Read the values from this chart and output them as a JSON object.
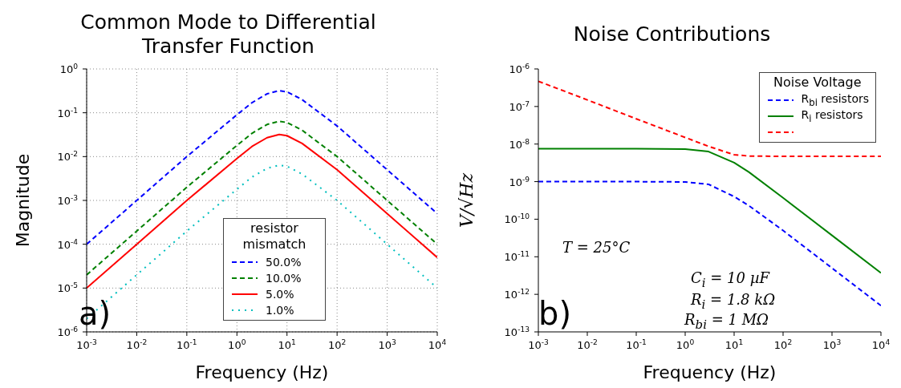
{
  "chart_data": [
    {
      "type": "line",
      "title": "Common Mode to Differential Transfer Function",
      "xlabel": "Frequency (Hz)",
      "ylabel": "Magnitude",
      "log": "xy",
      "grid": true,
      "legend": "bottom",
      "legend_title": "resistor mismatch",
      "x": [
        0.001,
        0.01,
        0.1,
        1,
        2,
        4,
        7,
        10,
        20,
        100,
        1000,
        10000
      ],
      "xlim": [
        0.001,
        10000
      ],
      "xticks": [
        {
          "value": 0.001,
          "label": "10$^{-3}$"
        },
        {
          "value": 0.01,
          "label": "10$^{-2}$"
        },
        {
          "value": 0.1,
          "label": "10$^{-1}$"
        },
        {
          "value": 1,
          "label": "10$^{0}$"
        },
        {
          "value": 10,
          "label": "10$^{1}$"
        },
        {
          "value": 100,
          "label": "10$^{2}$"
        },
        {
          "value": 1000,
          "label": "10$^{3}$"
        },
        {
          "value": 10000,
          "label": "10$^{4}$"
        }
      ],
      "ylim": [
        1e-06,
        1
      ],
      "yticks": [
        {
          "value": 1e-06,
          "label": "10$^{-6}$"
        },
        {
          "value": 1e-05,
          "label": "10$^{-5}$"
        },
        {
          "value": 0.0001,
          "label": "10$^{-4}$"
        },
        {
          "value": 0.001,
          "label": "10$^{-3}$"
        },
        {
          "value": 0.01,
          "label": "10$^{-2}$"
        },
        {
          "value": 0.1,
          "label": "10$^{-1}$"
        },
        {
          "value": 1,
          "label": "10$^{0}$"
        }
      ],
      "series": [
        {
          "name": "50.0%",
          "color": "#0000ff",
          "line_style": "dashed",
          "values": [
            0.0001,
            0.001,
            0.01,
            0.09,
            0.17,
            0.27,
            0.32,
            0.3,
            0.2,
            0.05,
            0.005,
            0.0005
          ]
        },
        {
          "name": "10.0%",
          "color": "#008000",
          "line_style": "dashed",
          "values": [
            2e-05,
            0.0002,
            0.002,
            0.018,
            0.034,
            0.054,
            0.064,
            0.06,
            0.04,
            0.01,
            0.001,
            0.0001
          ]
        },
        {
          "name": "5.0%",
          "color": "#ff0000",
          "line_style": "solid",
          "values": [
            1e-05,
            0.0001,
            0.001,
            0.009,
            0.017,
            0.027,
            0.032,
            0.03,
            0.02,
            0.005,
            0.0005,
            5e-05
          ]
        },
        {
          "name": "1.0%",
          "color": "#00bfbf",
          "line_style": "dotted",
          "values": [
            2e-06,
            2e-05,
            0.0002,
            0.0018,
            0.0034,
            0.0054,
            0.0064,
            0.006,
            0.004,
            0.001,
            0.0001,
            1e-05
          ]
        }
      ],
      "annotations": [
        "a)"
      ]
    },
    {
      "type": "line",
      "title": "Noise Contributions",
      "xlabel": "Frequency (Hz)",
      "ylabel": "V/√Hz",
      "log": "xy",
      "grid": false,
      "legend": "top right",
      "legend_title": "Noise Voltage",
      "x": [
        0.001,
        0.01,
        0.1,
        1,
        3,
        10,
        20,
        100,
        1000,
        10000
      ],
      "xlim": [
        0.001,
        10000
      ],
      "xticks": [
        {
          "value": 0.001,
          "label": "10$^{-3}$"
        },
        {
          "value": 0.01,
          "label": "10$^{-2}$"
        },
        {
          "value": 0.1,
          "label": "10$^{-1}$"
        },
        {
          "value": 1,
          "label": "10$^{0}$"
        },
        {
          "value": 10,
          "label": "10$^{1}$"
        },
        {
          "value": 100,
          "label": "10$^{2}$"
        },
        {
          "value": 1000,
          "label": "10$^{3}$"
        },
        {
          "value": 10000,
          "label": "10$^{4}$"
        }
      ],
      "ylim": [
        1e-13,
        1e-06
      ],
      "yticks": [
        {
          "value": 1e-13,
          "label": "10$^{-13}$"
        },
        {
          "value": 1e-12,
          "label": "10$^{-12}$"
        },
        {
          "value": 1e-11,
          "label": "10$^{-11}$"
        },
        {
          "value": 1e-10,
          "label": "10$^{-10}$"
        },
        {
          "value": 1e-09,
          "label": "10$^{-9}$"
        },
        {
          "value": 1e-08,
          "label": "10$^{-8}$"
        },
        {
          "value": 1e-07,
          "label": "10$^{-7}$"
        },
        {
          "value": 1e-06,
          "label": "10$^{-6}$"
        }
      ],
      "series": [
        {
          "name": "R$_{bi}$ resistors",
          "color": "#0000ff",
          "line_style": "dashed",
          "values": [
            1e-09,
            1e-09,
            1e-09,
            9.8e-10,
            8.5e-10,
            4e-10,
            2.3e-10,
            5e-11,
            5e-12,
            5e-13
          ]
        },
        {
          "name": "R$_{i}$ resistors",
          "color": "#008000",
          "line_style": "solid",
          "values": [
            7.5e-09,
            7.5e-09,
            7.5e-09,
            7.3e-09,
            6.3e-09,
            3.2e-09,
            1.8e-09,
            3.7e-10,
            3.7e-11,
            3.7e-12
          ]
        },
        {
          "color": "#ff0000",
          "line_style": "dashed",
          "values": [
            4.7e-07,
            1.5e-07,
            4.7e-08,
            1.5e-08,
            8.7e-09,
            5.2e-09,
            4.8e-09,
            4.7e-09,
            4.7e-09,
            4.7e-09
          ]
        }
      ],
      "annotations": [
        "b)",
        "T = 25°C",
        "C$_{i}$ = 10 µF",
        "R$_{i}$ = 1.8 kΩ",
        "R$_{bi}$ = 1 MΩ"
      ]
    }
  ]
}
